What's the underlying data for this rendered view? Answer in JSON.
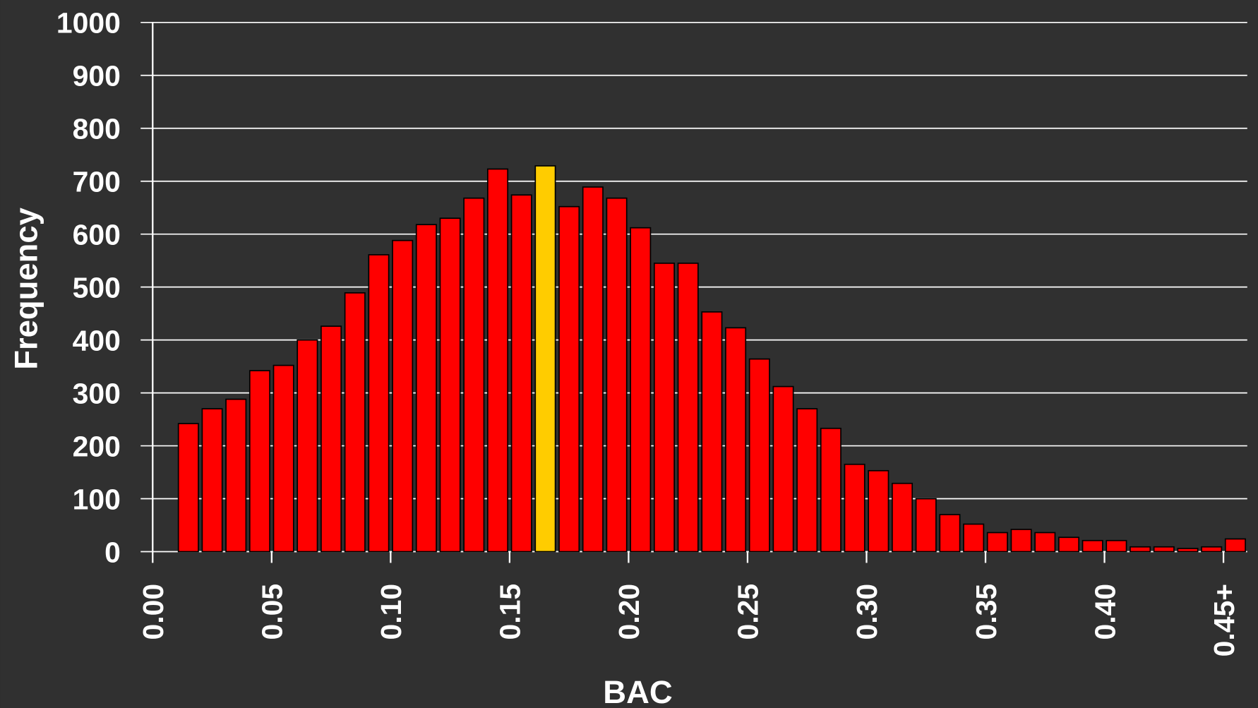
{
  "chart_data": {
    "type": "histogram",
    "x_label": "BAC",
    "y_label": "Frequency",
    "bins": [
      0.01,
      0.02,
      0.03,
      0.04,
      0.05,
      0.06,
      0.07,
      0.08,
      0.09,
      0.1,
      0.11,
      0.12,
      0.13,
      0.14,
      0.15,
      0.16,
      0.17,
      0.18,
      0.19,
      0.2,
      0.21,
      0.22,
      0.23,
      0.24,
      0.25,
      0.26,
      0.27,
      0.28,
      0.29,
      0.3,
      0.31,
      0.32,
      0.33,
      0.34,
      0.35,
      0.36,
      0.37,
      0.38,
      0.39,
      0.4,
      0.41,
      0.42,
      0.43,
      0.44,
      0.45,
      0.46
    ],
    "values": [
      242,
      270,
      288,
      342,
      352,
      400,
      426,
      489,
      561,
      588,
      618,
      630,
      668,
      723,
      674,
      729,
      652,
      689,
      668,
      612,
      545,
      545,
      453,
      423,
      364,
      312,
      270,
      233,
      165,
      153,
      129,
      100,
      70,
      52,
      36,
      42,
      36,
      27,
      21,
      21,
      9,
      9,
      6,
      9,
      24
    ],
    "colors": [
      "#ff0000",
      "#ff0000",
      "#ff0000",
      "#ff0000",
      "#ff0000",
      "#ff0000",
      "#ff0000",
      "#ff0000",
      "#ff0000",
      "#ff0000",
      "#ff0000",
      "#ff0000",
      "#ff0000",
      "#ff0000",
      "#ff0000",
      "#ffcc00",
      "#ff0000",
      "#ff0000",
      "#ff0000",
      "#ff0000",
      "#ff0000",
      "#ff0000",
      "#ff0000",
      "#ff0000",
      "#ff0000",
      "#ff0000",
      "#ff0000",
      "#ff0000",
      "#ff0000",
      "#ff0000",
      "#ff0000",
      "#ff0000",
      "#ff0000",
      "#ff0000",
      "#ff0000",
      "#ff0000",
      "#ff0000",
      "#ff0000",
      "#ff0000",
      "#ff0000",
      "#ff0000",
      "#ff0000",
      "#ff0000",
      "#ff0000",
      "#ff0000"
    ],
    "xlim": [
      0,
      0.46
    ],
    "xticks": [
      {
        "value": 0,
        "label": "0.00"
      },
      0.05,
      {
        "value": 0.1,
        "label": "0.10"
      },
      0.15,
      {
        "value": 0.2,
        "label": "0.20"
      },
      0.25,
      {
        "value": 0.3,
        "label": "0.30"
      },
      0.35,
      {
        "value": 0.4,
        "label": "0.40"
      },
      {
        "value": 0.45,
        "label": "0.45+"
      }
    ],
    "ylim": [
      0,
      1000
    ],
    "yticks": [
      0,
      100,
      200,
      300,
      400,
      500,
      600,
      700,
      800,
      900,
      1000
    ],
    "grid": true
  }
}
